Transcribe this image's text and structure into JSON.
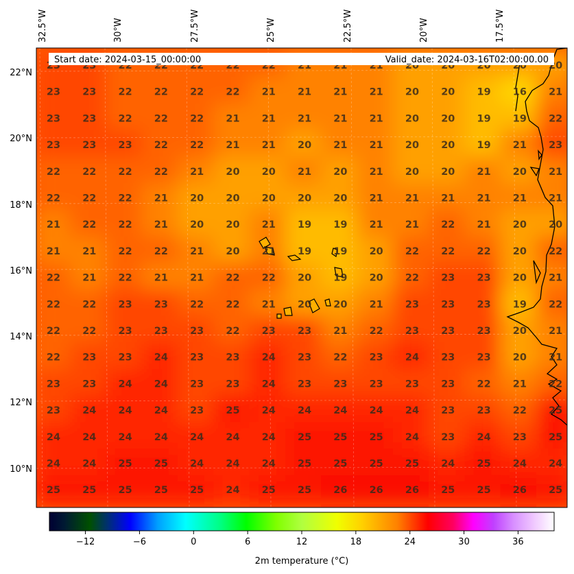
{
  "map": {
    "start_date": "Start date: 2024-03-15_00:00:00",
    "valid_date": "Valid_date: 2024-03-16T02:00:00.00",
    "lon_labels": [
      "32.5°W",
      "30°W",
      "27.5°W",
      "25°W",
      "22.5°W",
      "20°W",
      "17.5°W"
    ],
    "lat_labels": [
      "22°N",
      "20°N",
      "18°N",
      "16°N",
      "14°N",
      "12°N",
      "10°N"
    ],
    "grid_values": [
      [
        "23",
        "23",
        "22",
        "22",
        "22",
        "22",
        "22",
        "21",
        "21",
        "21",
        "20",
        "20",
        "20",
        "20",
        "20"
      ],
      [
        "23",
        "23",
        "22",
        "22",
        "22",
        "22",
        "21",
        "21",
        "21",
        "21",
        "20",
        "20",
        "19",
        "16",
        "21"
      ],
      [
        "23",
        "23",
        "22",
        "22",
        "22",
        "21",
        "21",
        "21",
        "21",
        "21",
        "20",
        "20",
        "19",
        "19",
        "22"
      ],
      [
        "23",
        "23",
        "23",
        "22",
        "22",
        "21",
        "21",
        "20",
        "21",
        "21",
        "20",
        "20",
        "19",
        "21",
        "23"
      ],
      [
        "22",
        "22",
        "22",
        "22",
        "21",
        "20",
        "20",
        "21",
        "20",
        "21",
        "20",
        "20",
        "21",
        "20",
        "21"
      ],
      [
        "22",
        "22",
        "22",
        "21",
        "20",
        "20",
        "20",
        "20",
        "20",
        "21",
        "21",
        "21",
        "21",
        "21",
        "21"
      ],
      [
        "21",
        "22",
        "22",
        "21",
        "20",
        "20",
        "21",
        "19",
        "19",
        "21",
        "21",
        "22",
        "21",
        "20",
        "20"
      ],
      [
        "21",
        "21",
        "22",
        "22",
        "21",
        "20",
        "21",
        "19",
        "19",
        "20",
        "22",
        "22",
        "22",
        "20",
        "22"
      ],
      [
        "22",
        "21",
        "22",
        "21",
        "21",
        "22",
        "22",
        "20",
        "19",
        "20",
        "22",
        "23",
        "23",
        "20",
        "21"
      ],
      [
        "22",
        "22",
        "23",
        "23",
        "22",
        "22",
        "21",
        "20",
        "20",
        "21",
        "23",
        "23",
        "23",
        "19",
        "22"
      ],
      [
        "22",
        "22",
        "23",
        "23",
        "23",
        "22",
        "23",
        "23",
        "21",
        "22",
        "23",
        "23",
        "23",
        "20",
        "21"
      ],
      [
        "22",
        "23",
        "23",
        "24",
        "23",
        "23",
        "24",
        "23",
        "22",
        "23",
        "24",
        "23",
        "23",
        "20",
        "21"
      ],
      [
        "23",
        "23",
        "24",
        "24",
        "23",
        "23",
        "24",
        "23",
        "23",
        "23",
        "23",
        "23",
        "22",
        "21",
        "22"
      ],
      [
        "23",
        "24",
        "24",
        "24",
        "23",
        "25",
        "24",
        "24",
        "24",
        "24",
        "24",
        "23",
        "23",
        "22",
        "25"
      ],
      [
        "24",
        "24",
        "24",
        "24",
        "24",
        "24",
        "24",
        "25",
        "25",
        "25",
        "24",
        "23",
        "24",
        "23",
        "25"
      ],
      [
        "24",
        "24",
        "25",
        "25",
        "24",
        "24",
        "24",
        "25",
        "25",
        "25",
        "25",
        "24",
        "25",
        "24",
        "24"
      ],
      [
        "25",
        "25",
        "25",
        "25",
        "25",
        "24",
        "25",
        "25",
        "26",
        "26",
        "26",
        "25",
        "25",
        "26",
        "25"
      ]
    ]
  },
  "colorbar": {
    "ticks": [
      "−12",
      "−6",
      "0",
      "6",
      "12",
      "18",
      "24",
      "30",
      "36"
    ],
    "label": "2m temperature ($^\\circ$C)",
    "label_display": "2m temperature (°C)",
    "min": -16,
    "max": 40
  },
  "colors": {
    "cool": "#ffd000",
    "mid": "#ff7a00",
    "hot": "#ff1e00"
  }
}
